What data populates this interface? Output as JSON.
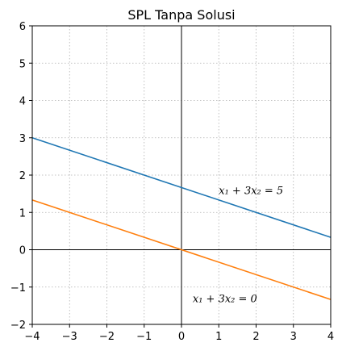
{
  "chart_data": {
    "type": "line",
    "title": "SPL Tanpa Solusi",
    "xlabel": "",
    "ylabel": "",
    "xlim": [
      -4,
      4
    ],
    "ylim": [
      -2,
      6
    ],
    "xticks": [
      -4,
      -3,
      -2,
      -1,
      0,
      1,
      2,
      3,
      4
    ],
    "yticks": [
      -2,
      -1,
      0,
      1,
      2,
      3,
      4,
      5,
      6
    ],
    "xtick_labels": [
      "−4",
      "−3",
      "−2",
      "−1",
      "0",
      "1",
      "2",
      "3",
      "4"
    ],
    "ytick_labels": [
      "−2",
      "−1",
      "0",
      "1",
      "2",
      "3",
      "4",
      "5",
      "6"
    ],
    "grid": true,
    "series": [
      {
        "color": "#1f77b4",
        "x": [
          -4,
          4
        ],
        "y": [
          3.0,
          0.3333
        ]
      },
      {
        "color": "#ff7f0e",
        "x": [
          -4,
          4
        ],
        "y": [
          1.3333,
          -1.3333
        ]
      }
    ],
    "annotations": [
      {
        "text": "x₁ + 3x₂ = 5",
        "x": 1.0,
        "y": 1.6
      },
      {
        "text": "x₁ + 3x₂ = 0",
        "x": 0.3,
        "y": -1.3
      }
    ]
  }
}
